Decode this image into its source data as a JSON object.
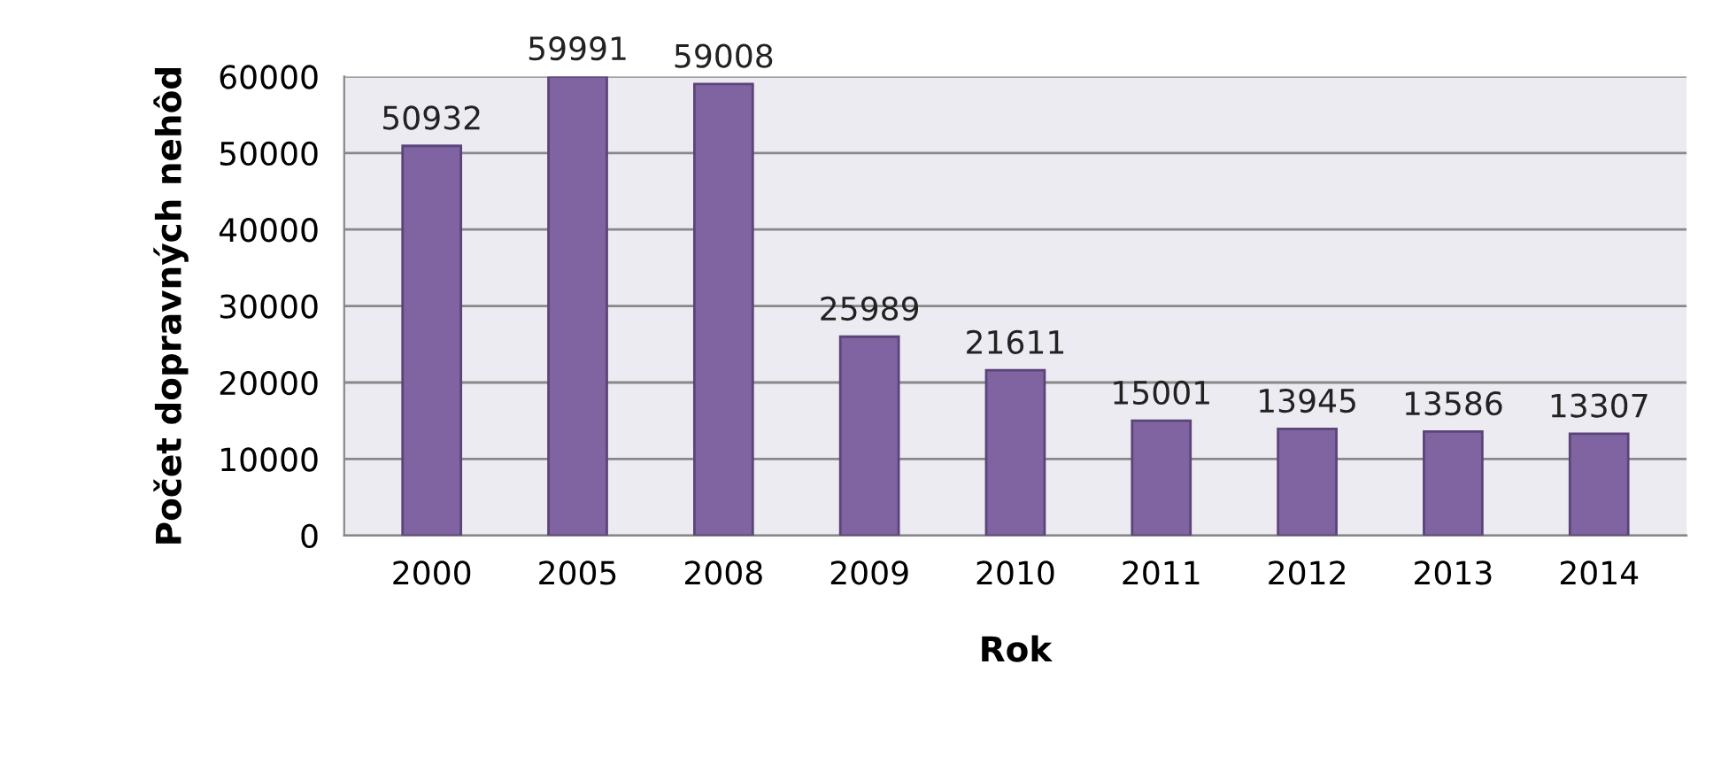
{
  "chart_data": {
    "type": "bar",
    "xlabel": "Rok",
    "ylabel": "Počet dopravných nehôd",
    "categories": [
      "2000",
      "2005",
      "2008",
      "2009",
      "2010",
      "2011",
      "2012",
      "2013",
      "2014"
    ],
    "values": [
      50932,
      59991,
      59008,
      25989,
      21611,
      15001,
      13945,
      13586,
      13307
    ],
    "color": "#8064a2",
    "data_labels": true,
    "ylim": [
      0,
      60000
    ],
    "yticks": [
      0,
      10000,
      20000,
      30000,
      40000,
      50000,
      60000
    ],
    "grid": "y"
  }
}
